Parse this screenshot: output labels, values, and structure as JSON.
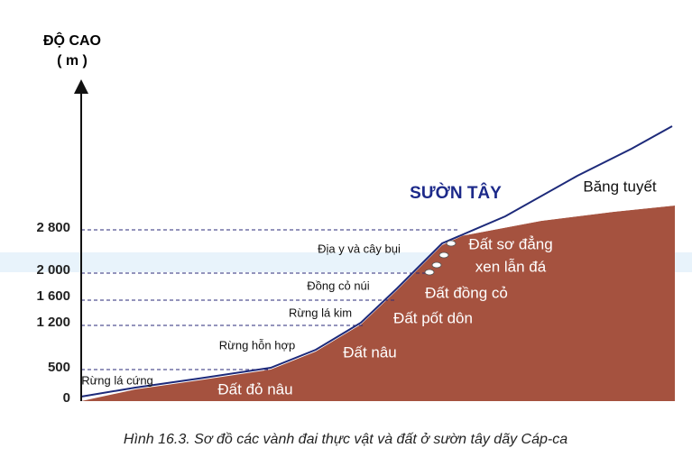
{
  "axis": {
    "title": "ĐỘ CAO",
    "unit": "( m )",
    "ticks": [
      "2 800",
      "2 000",
      "1 600",
      "1 200",
      "500",
      "0"
    ]
  },
  "slope": "SƯỜN TÂY",
  "snow": "Băng tuyết",
  "vegetation_belts": [
    "Địa y và cây bụi",
    "Đồng cỏ núi",
    "Rừng lá kim",
    "Rừng hỗn hợp",
    "Rừng lá cứng"
  ],
  "soil_belts": [
    "Đất sơ đẳng",
    "xen lẫn đá",
    "Đất đồng cỏ",
    "Đất pốt dôn",
    "Đất nâu",
    "Đất đỏ nâu"
  ],
  "caption": "Hình 16.3. Sơ đồ các vành đai thực vật và đất ở sườn tây dãy Cáp-ca"
}
